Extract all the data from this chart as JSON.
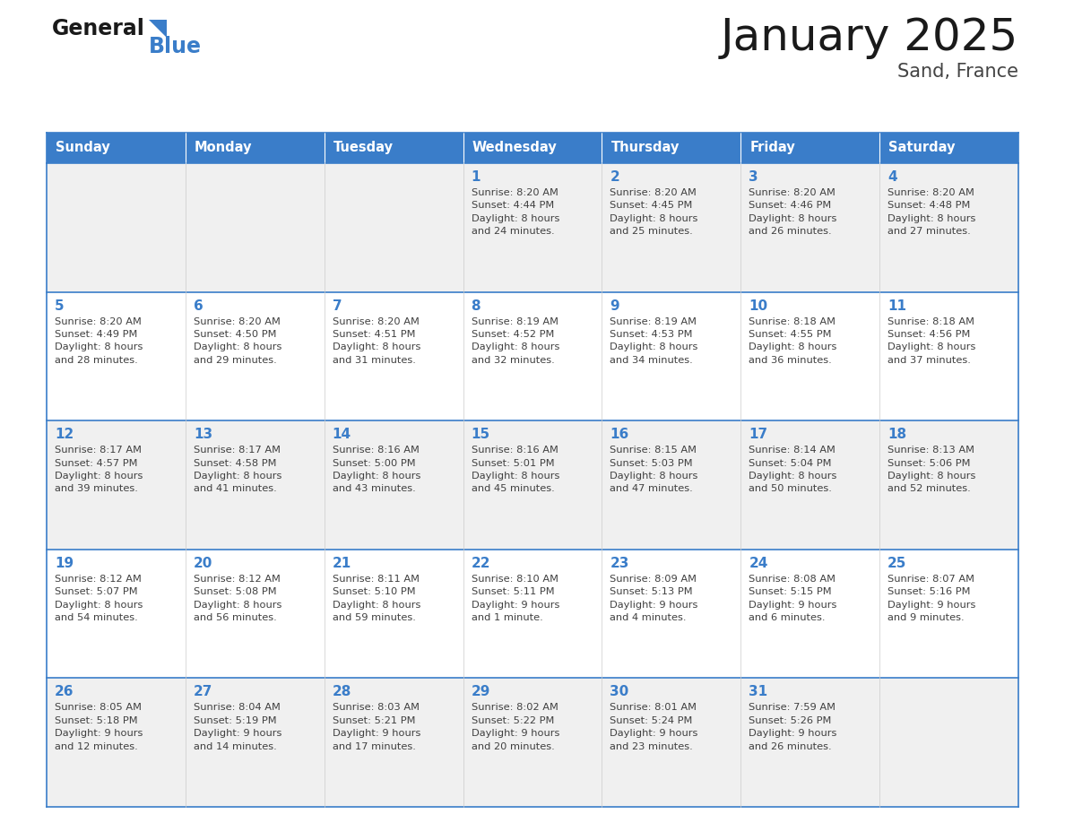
{
  "title": "January 2025",
  "subtitle": "Sand, France",
  "days_of_week": [
    "Sunday",
    "Monday",
    "Tuesday",
    "Wednesday",
    "Thursday",
    "Friday",
    "Saturday"
  ],
  "header_bg": "#3A7DC9",
  "header_text_color": "#FFFFFF",
  "cell_bg_white": "#FFFFFF",
  "cell_bg_gray": "#F0F0F0",
  "day_num_color": "#3A7DC9",
  "text_color": "#404040",
  "border_color": "#3A7DC9",
  "weeks": [
    [
      {
        "day": null,
        "info": null
      },
      {
        "day": null,
        "info": null
      },
      {
        "day": null,
        "info": null
      },
      {
        "day": 1,
        "info": "Sunrise: 8:20 AM\nSunset: 4:44 PM\nDaylight: 8 hours\nand 24 minutes."
      },
      {
        "day": 2,
        "info": "Sunrise: 8:20 AM\nSunset: 4:45 PM\nDaylight: 8 hours\nand 25 minutes."
      },
      {
        "day": 3,
        "info": "Sunrise: 8:20 AM\nSunset: 4:46 PM\nDaylight: 8 hours\nand 26 minutes."
      },
      {
        "day": 4,
        "info": "Sunrise: 8:20 AM\nSunset: 4:48 PM\nDaylight: 8 hours\nand 27 minutes."
      }
    ],
    [
      {
        "day": 5,
        "info": "Sunrise: 8:20 AM\nSunset: 4:49 PM\nDaylight: 8 hours\nand 28 minutes."
      },
      {
        "day": 6,
        "info": "Sunrise: 8:20 AM\nSunset: 4:50 PM\nDaylight: 8 hours\nand 29 minutes."
      },
      {
        "day": 7,
        "info": "Sunrise: 8:20 AM\nSunset: 4:51 PM\nDaylight: 8 hours\nand 31 minutes."
      },
      {
        "day": 8,
        "info": "Sunrise: 8:19 AM\nSunset: 4:52 PM\nDaylight: 8 hours\nand 32 minutes."
      },
      {
        "day": 9,
        "info": "Sunrise: 8:19 AM\nSunset: 4:53 PM\nDaylight: 8 hours\nand 34 minutes."
      },
      {
        "day": 10,
        "info": "Sunrise: 8:18 AM\nSunset: 4:55 PM\nDaylight: 8 hours\nand 36 minutes."
      },
      {
        "day": 11,
        "info": "Sunrise: 8:18 AM\nSunset: 4:56 PM\nDaylight: 8 hours\nand 37 minutes."
      }
    ],
    [
      {
        "day": 12,
        "info": "Sunrise: 8:17 AM\nSunset: 4:57 PM\nDaylight: 8 hours\nand 39 minutes."
      },
      {
        "day": 13,
        "info": "Sunrise: 8:17 AM\nSunset: 4:58 PM\nDaylight: 8 hours\nand 41 minutes."
      },
      {
        "day": 14,
        "info": "Sunrise: 8:16 AM\nSunset: 5:00 PM\nDaylight: 8 hours\nand 43 minutes."
      },
      {
        "day": 15,
        "info": "Sunrise: 8:16 AM\nSunset: 5:01 PM\nDaylight: 8 hours\nand 45 minutes."
      },
      {
        "day": 16,
        "info": "Sunrise: 8:15 AM\nSunset: 5:03 PM\nDaylight: 8 hours\nand 47 minutes."
      },
      {
        "day": 17,
        "info": "Sunrise: 8:14 AM\nSunset: 5:04 PM\nDaylight: 8 hours\nand 50 minutes."
      },
      {
        "day": 18,
        "info": "Sunrise: 8:13 AM\nSunset: 5:06 PM\nDaylight: 8 hours\nand 52 minutes."
      }
    ],
    [
      {
        "day": 19,
        "info": "Sunrise: 8:12 AM\nSunset: 5:07 PM\nDaylight: 8 hours\nand 54 minutes."
      },
      {
        "day": 20,
        "info": "Sunrise: 8:12 AM\nSunset: 5:08 PM\nDaylight: 8 hours\nand 56 minutes."
      },
      {
        "day": 21,
        "info": "Sunrise: 8:11 AM\nSunset: 5:10 PM\nDaylight: 8 hours\nand 59 minutes."
      },
      {
        "day": 22,
        "info": "Sunrise: 8:10 AM\nSunset: 5:11 PM\nDaylight: 9 hours\nand 1 minute."
      },
      {
        "day": 23,
        "info": "Sunrise: 8:09 AM\nSunset: 5:13 PM\nDaylight: 9 hours\nand 4 minutes."
      },
      {
        "day": 24,
        "info": "Sunrise: 8:08 AM\nSunset: 5:15 PM\nDaylight: 9 hours\nand 6 minutes."
      },
      {
        "day": 25,
        "info": "Sunrise: 8:07 AM\nSunset: 5:16 PM\nDaylight: 9 hours\nand 9 minutes."
      }
    ],
    [
      {
        "day": 26,
        "info": "Sunrise: 8:05 AM\nSunset: 5:18 PM\nDaylight: 9 hours\nand 12 minutes."
      },
      {
        "day": 27,
        "info": "Sunrise: 8:04 AM\nSunset: 5:19 PM\nDaylight: 9 hours\nand 14 minutes."
      },
      {
        "day": 28,
        "info": "Sunrise: 8:03 AM\nSunset: 5:21 PM\nDaylight: 9 hours\nand 17 minutes."
      },
      {
        "day": 29,
        "info": "Sunrise: 8:02 AM\nSunset: 5:22 PM\nDaylight: 9 hours\nand 20 minutes."
      },
      {
        "day": 30,
        "info": "Sunrise: 8:01 AM\nSunset: 5:24 PM\nDaylight: 9 hours\nand 23 minutes."
      },
      {
        "day": 31,
        "info": "Sunrise: 7:59 AM\nSunset: 5:26 PM\nDaylight: 9 hours\nand 26 minutes."
      },
      {
        "day": null,
        "info": null
      }
    ]
  ]
}
